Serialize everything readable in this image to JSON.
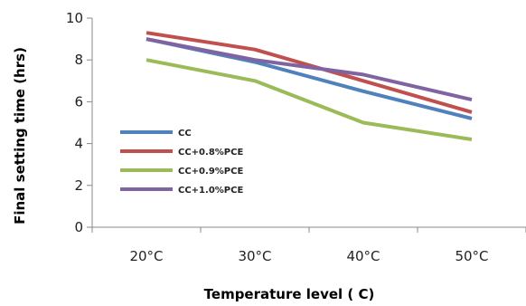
{
  "chart_data": {
    "type": "line",
    "categories": [
      "20°C",
      "30°C",
      "40°C",
      "50°C"
    ],
    "series": [
      {
        "name": "CC",
        "values": [
          9.0,
          7.9,
          6.5,
          5.2
        ],
        "color": "#4f81bd"
      },
      {
        "name": "CC+0.8%PCE",
        "values": [
          9.3,
          8.5,
          7.0,
          5.5
        ],
        "color": "#c0504d"
      },
      {
        "name": "CC+0.9%PCE",
        "values": [
          8.0,
          7.0,
          5.0,
          4.2
        ],
        "color": "#9bbb59"
      },
      {
        "name": "CC+1.0%PCE",
        "values": [
          9.0,
          8.0,
          7.3,
          6.1
        ],
        "color": "#8064a2"
      }
    ],
    "ylim": [
      0,
      10
    ],
    "yticks": [
      "0",
      "2",
      "4",
      "6",
      "8",
      "10"
    ],
    "xlabel": "Temperature level ( C)",
    "ylabel": "Final setting time (hrs)",
    "legend_position": "left",
    "grid": false
  }
}
